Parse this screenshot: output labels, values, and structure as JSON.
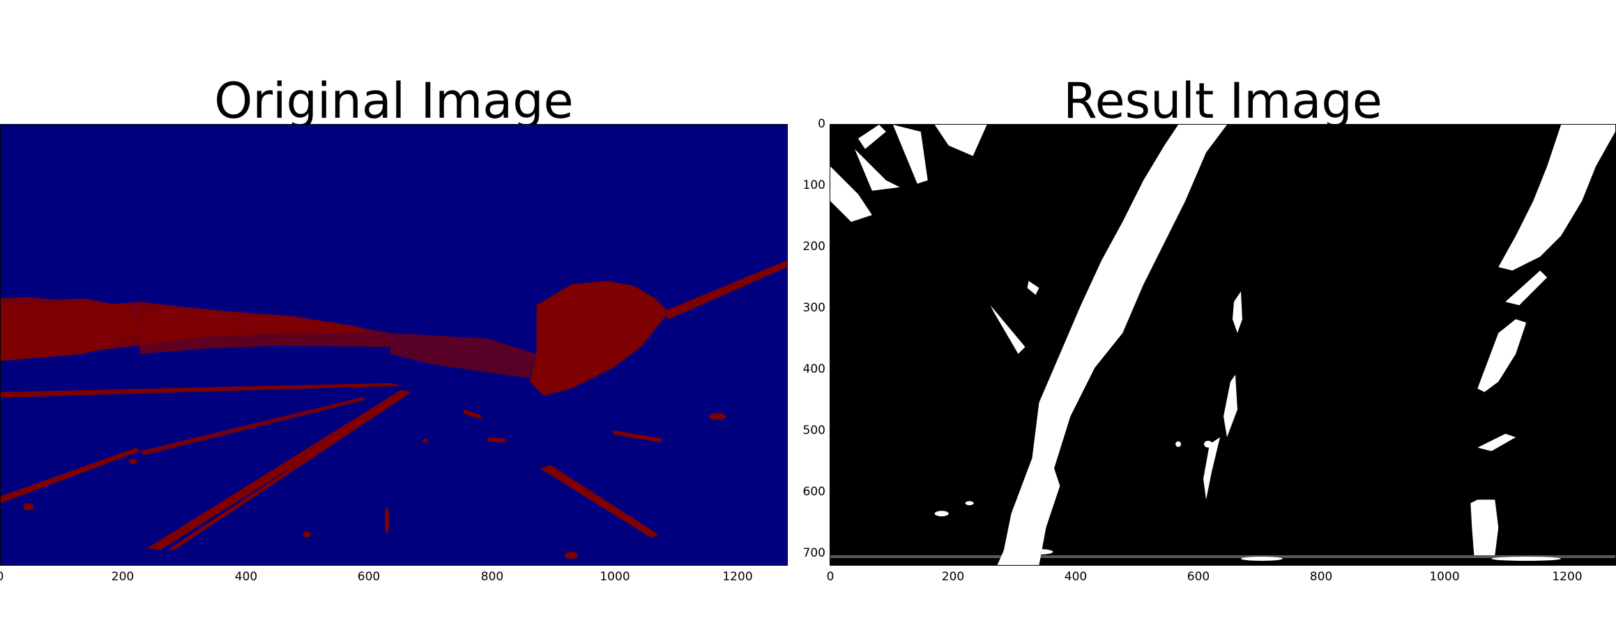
{
  "figure": {
    "left": {
      "title": "Original Image",
      "x_ticks": [
        "0",
        "200",
        "400",
        "600",
        "800",
        "1000",
        "1200"
      ],
      "colors": {
        "background": "#00007f",
        "foreground": "#7f0000"
      }
    },
    "right": {
      "title": "Result Image",
      "x_ticks": [
        "0",
        "200",
        "400",
        "600",
        "800",
        "1000",
        "1200"
      ],
      "y_ticks": [
        "0",
        "100",
        "200",
        "300",
        "400",
        "500",
        "600",
        "700"
      ],
      "colors": {
        "background": "#000000",
        "foreground": "#ffffff"
      }
    }
  }
}
